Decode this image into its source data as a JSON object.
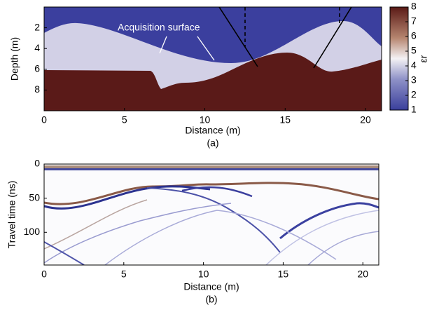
{
  "chart_data": [
    {
      "type": "heatmap",
      "panel_label": "(a)",
      "xlabel": "Distance (m)",
      "ylabel": "Depth (m)",
      "annotation": "Acquisition surface",
      "xlim": [
        0,
        21
      ],
      "xticks": [
        0,
        5,
        10,
        15,
        20
      ],
      "ylim": [
        0,
        10
      ],
      "yticks": [
        2,
        4,
        6,
        8
      ],
      "y_inverted": true,
      "colorbar": {
        "label": "εr",
        "lim": [
          1,
          8
        ],
        "ticks": [
          1,
          2,
          3,
          4,
          5,
          6,
          7,
          8
        ]
      }
    },
    {
      "type": "heatmap",
      "panel_label": "(b)",
      "xlabel": "Distance (m)",
      "ylabel": "Travel time (ns)",
      "xlim": [
        0,
        21
      ],
      "xticks": [
        0,
        5,
        10,
        15,
        20
      ],
      "ylim": [
        0,
        148
      ],
      "yticks": [
        0,
        50,
        100
      ],
      "y_inverted": true
    }
  ]
}
